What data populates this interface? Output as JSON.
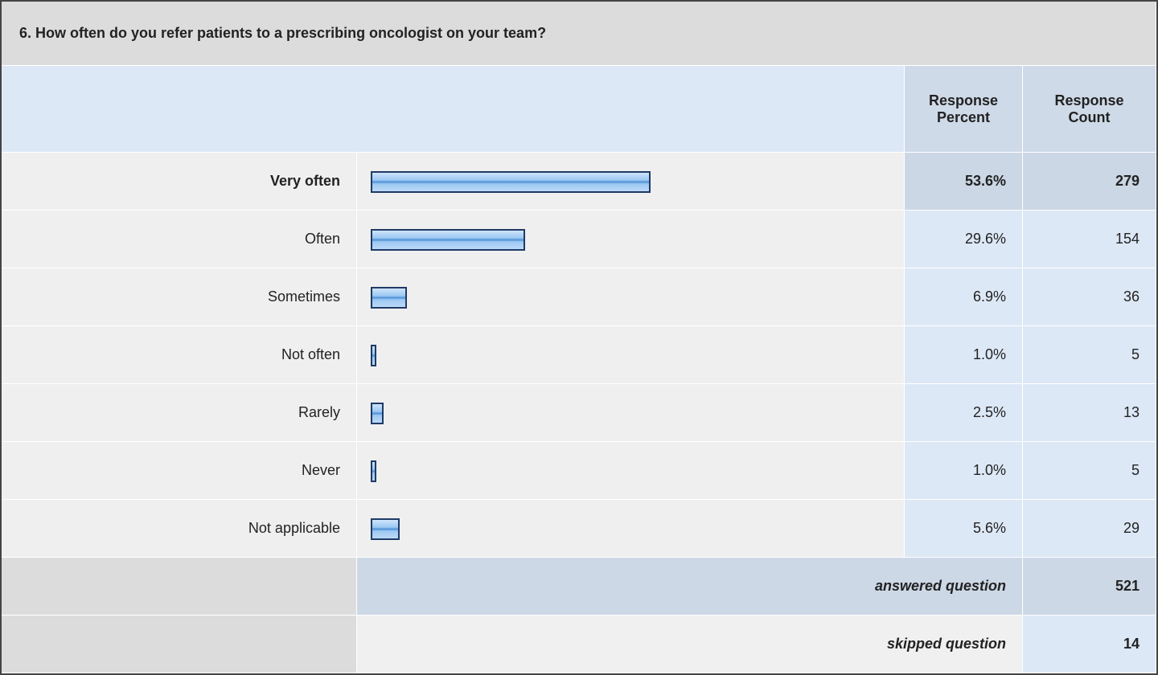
{
  "chart_data": {
    "type": "bar",
    "title": "6. How often do you refer patients to a prescribing oncologist on your team?",
    "columns": [
      "Response Percent",
      "Response Count"
    ],
    "categories": [
      "Very often",
      "Often",
      "Sometimes",
      "Not often",
      "Rarely",
      "Never",
      "Not applicable"
    ],
    "values": [
      53.6,
      29.6,
      6.9,
      1.0,
      2.5,
      1.0,
      5.6
    ],
    "value_labels": [
      "53.6%",
      "29.6%",
      "6.9%",
      "1.0%",
      "2.5%",
      "1.0%",
      "5.6%"
    ],
    "counts": [
      279,
      154,
      36,
      5,
      13,
      5,
      29
    ],
    "totals": [
      {
        "label": "answered question",
        "value": 521
      },
      {
        "label": "skipped question",
        "value": 14
      }
    ],
    "color": "#8fbff0"
  }
}
